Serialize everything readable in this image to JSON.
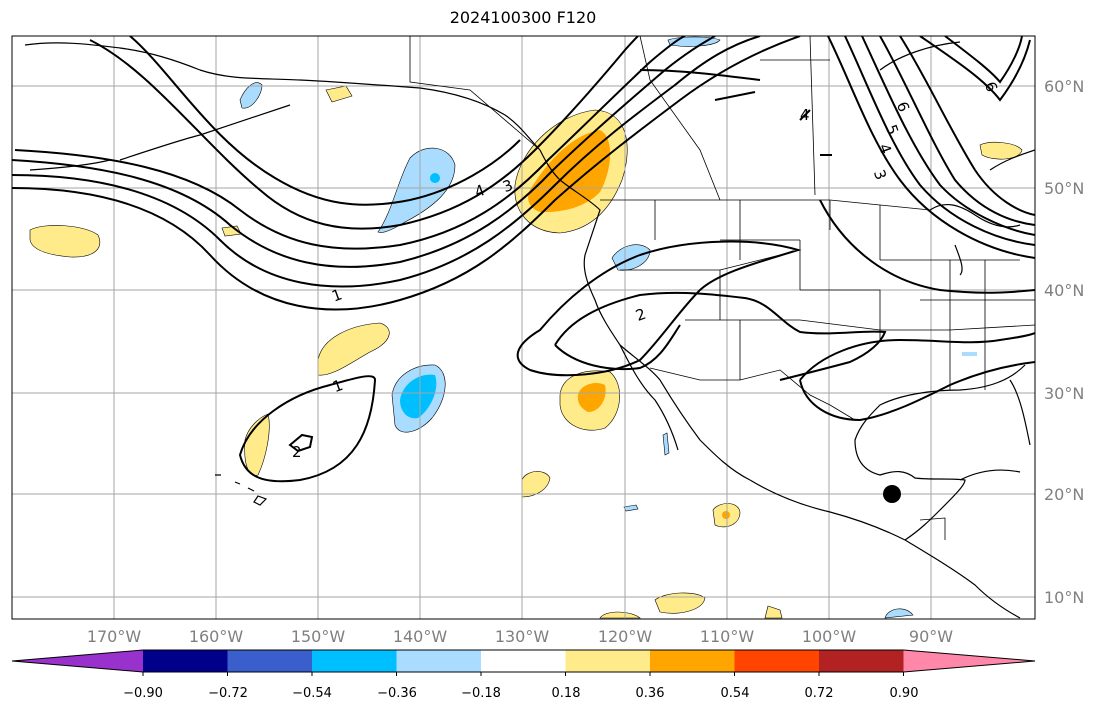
{
  "title": "2024100300 F120",
  "lat_labels": [
    "60°N",
    "50°N",
    "40°N",
    "30°N",
    "20°N",
    "10°N"
  ],
  "lon_labels": [
    "170°W",
    "160°W",
    "150°W",
    "140°W",
    "130°W",
    "120°W",
    "110°W",
    "100°W",
    "90°W"
  ],
  "colorbar": {
    "tick_labels": [
      "−0.90",
      "−0.72",
      "−0.54",
      "−0.36",
      "−0.18",
      "0.18",
      "0.36",
      "0.54",
      "0.72",
      "0.90"
    ],
    "colors": [
      "#9932cc",
      "#00008b",
      "#3a5fcd",
      "#00bfff",
      "#aadcff",
      "#ffffff",
      "#ffeb8a",
      "#ffa500",
      "#ff4500",
      "#b22222",
      "#ff88aa"
    ]
  },
  "contour_labels": [
    "1",
    "1",
    "2",
    "2",
    "3",
    "4",
    "4",
    "5",
    "6",
    "3",
    "4",
    "6"
  ],
  "marker_color": "#000000"
}
